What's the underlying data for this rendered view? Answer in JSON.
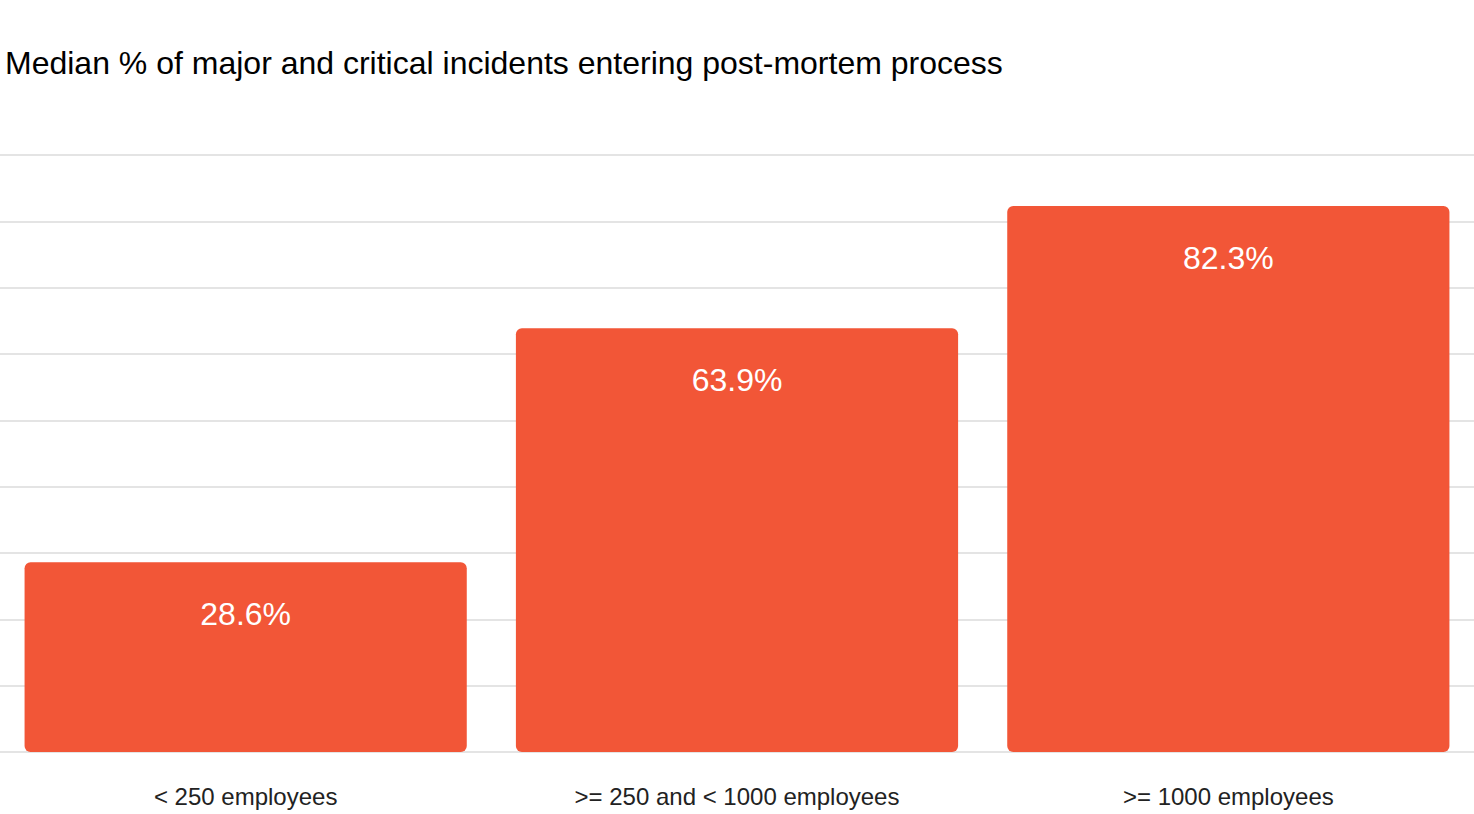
{
  "chart_data": {
    "type": "bar",
    "title": "Median % of major and critical incidents entering post-mortem process",
    "categories": [
      "< 250 employees",
      ">= 250 and < 1000 employees",
      ">= 1000 employees"
    ],
    "values": [
      28.6,
      63.9,
      82.3
    ],
    "value_labels": [
      "28.6%",
      "63.9%",
      "82.3%"
    ],
    "color": "#f25637",
    "ylim": [
      0,
      90
    ],
    "yticks": [
      0,
      10,
      20,
      30,
      40,
      50,
      60,
      70,
      80,
      90
    ],
    "grid": true,
    "data_labels": true,
    "tick_labels": "x"
  }
}
